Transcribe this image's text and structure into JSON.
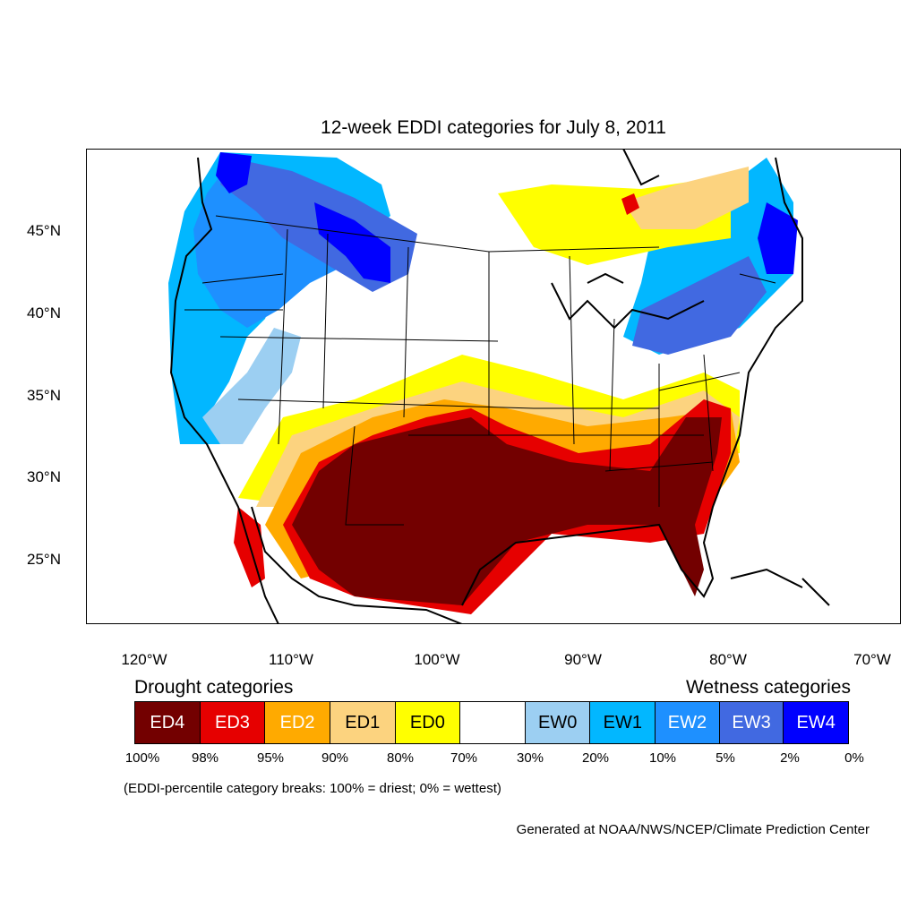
{
  "title": "12-week EDDI categories for July 8, 2011",
  "axes": {
    "lon_labels": [
      "120°W",
      "110°W",
      "100°W",
      "90°W",
      "80°W",
      "70°W"
    ],
    "lat_labels": [
      "45°N",
      "40°N",
      "35°N",
      "30°N",
      "25°N"
    ]
  },
  "legend": {
    "drought_heading": "Drought categories",
    "wetness_heading": "Wetness categories",
    "categories": [
      {
        "label": "ED4",
        "color": "#730000",
        "text_color": "#ffffff"
      },
      {
        "label": "ED3",
        "color": "#e60000",
        "text_color": "#ffffff"
      },
      {
        "label": "ED2",
        "color": "#ffaa00",
        "text_color": "#ffffff"
      },
      {
        "label": "ED1",
        "color": "#fcd37f",
        "text_color": "#000000"
      },
      {
        "label": "ED0",
        "color": "#ffff00",
        "text_color": "#000000"
      },
      {
        "label": "",
        "color": "#ffffff",
        "text_color": "#000000"
      },
      {
        "label": "EW0",
        "color": "#9ccff2",
        "text_color": "#000000"
      },
      {
        "label": "EW1",
        "color": "#02b7ff",
        "text_color": "#000000"
      },
      {
        "label": "EW2",
        "color": "#1e90ff",
        "text_color": "#ffffff"
      },
      {
        "label": "EW3",
        "color": "#4169e1",
        "text_color": "#ffffff"
      },
      {
        "label": "EW4",
        "color": "#0000ff",
        "text_color": "#ffffff"
      }
    ],
    "breaks": [
      "100%",
      "98%",
      "95%",
      "90%",
      "80%",
      "70%",
      "30%",
      "20%",
      "10%",
      "5%",
      "2%",
      "0%"
    ]
  },
  "note": "(EDDI-percentile category breaks: 100% = driest; 0% = wettest)",
  "credit": "Generated at NOAA/NWS/NCEP/Climate Prediction Center"
}
